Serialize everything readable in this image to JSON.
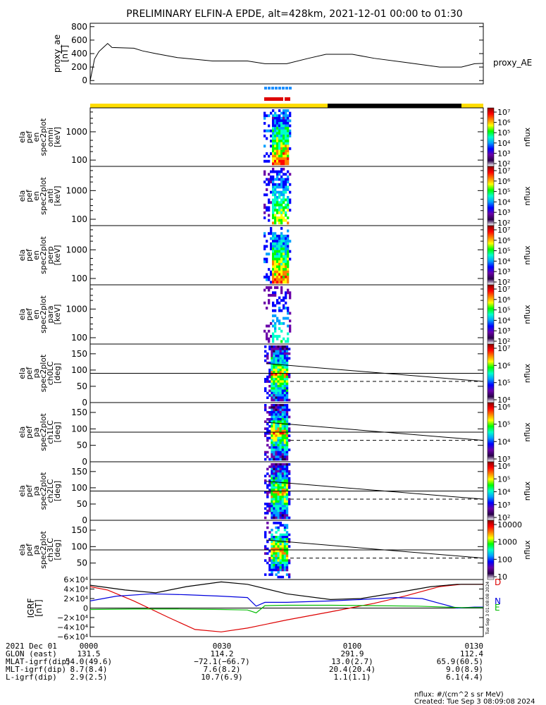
{
  "title": "PRELIMINARY ELFIN-A EPDE, alt=428km, 2021-12-01 00:00 to 01:30",
  "ae_panel": {
    "ylabel_lines": [
      "proxy_ae",
      "[nT]"
    ],
    "yticks": [
      "800",
      "600",
      "400",
      "200",
      "0"
    ],
    "series_label": "proxy_AE",
    "ylim": [
      -50,
      850
    ],
    "values": [
      [
        0,
        0
      ],
      [
        1,
        320
      ],
      [
        2,
        430
      ],
      [
        3,
        490
      ],
      [
        4,
        550
      ],
      [
        5,
        490
      ],
      [
        10,
        480
      ],
      [
        12,
        440
      ],
      [
        15,
        400
      ],
      [
        20,
        340
      ],
      [
        28,
        290
      ],
      [
        36,
        290
      ],
      [
        40,
        250
      ],
      [
        45,
        250
      ],
      [
        50,
        330
      ],
      [
        54,
        390
      ],
      [
        60,
        390
      ],
      [
        65,
        330
      ],
      [
        72,
        270
      ],
      [
        80,
        200
      ],
      [
        85,
        200
      ],
      [
        88,
        250
      ],
      [
        90,
        255
      ]
    ]
  },
  "energy_panels": [
    {
      "ylabel_lines": [
        "ela",
        "pef",
        "en",
        "spec2plot",
        "omni",
        "[keV]"
      ],
      "yticks": [
        "1000",
        "100"
      ]
    },
    {
      "ylabel_lines": [
        "ela",
        "pef",
        "en",
        "spec2plot",
        "anti",
        "[keV]"
      ],
      "yticks": [
        "1000",
        "100"
      ]
    },
    {
      "ylabel_lines": [
        "ela",
        "pef",
        "en",
        "spec2plot",
        "perp",
        "[keV]"
      ],
      "yticks": [
        "1000",
        "100"
      ]
    },
    {
      "ylabel_lines": [
        "ela",
        "pef",
        "en",
        "spec2plot",
        "para",
        "[keV]"
      ],
      "yticks": [
        "1000",
        "100"
      ]
    }
  ],
  "pa_panels": [
    {
      "ylabel_lines": [
        "ela",
        "pef",
        "pa",
        "spec2plot",
        "ch0LC",
        "[deg]"
      ],
      "yticks": [
        "150",
        "100",
        "50",
        "0"
      ]
    },
    {
      "ylabel_lines": [
        "ela",
        "pef",
        "pa",
        "spec2plot",
        "ch1LC",
        "[deg]"
      ],
      "yticks": [
        "150",
        "100",
        "50",
        "0"
      ]
    },
    {
      "ylabel_lines": [
        "ela",
        "pef",
        "pa",
        "spec2plot",
        "ch2LC",
        "[deg]"
      ],
      "yticks": [
        "150",
        "100",
        "50",
        "0"
      ]
    },
    {
      "ylabel_lines": [
        "ela",
        "pef",
        "pa",
        "spec2plot",
        "ch3LC",
        "[deg]"
      ],
      "yticks": [
        "150",
        "100",
        "50"
      ]
    }
  ],
  "colorbars": [
    {
      "title": "nflux",
      "labels": [
        "10⁷",
        "10⁶",
        "10⁵",
        "10⁴",
        "10³",
        "10²"
      ]
    },
    {
      "title": "nflux",
      "labels": [
        "10⁷",
        "10⁶",
        "10⁵",
        "10⁴",
        "10³",
        "10²"
      ]
    },
    {
      "title": "nflux",
      "labels": [
        "10⁷",
        "10⁶",
        "10⁵",
        "10⁴",
        "10³",
        "10²"
      ]
    },
    {
      "title": "nflux",
      "labels": [
        "10⁷",
        "10⁶",
        "10⁵",
        "10⁴",
        "10³",
        "10²"
      ]
    },
    {
      "title": "nflux",
      "labels": [
        "10⁷",
        "10⁶",
        "10⁵",
        "10⁴"
      ]
    },
    {
      "title": "nflux",
      "labels": [
        "10⁶",
        "10⁵",
        "10⁴",
        "10³"
      ]
    },
    {
      "title": "nflux",
      "labels": [
        "10⁶",
        "10⁵",
        "10⁴",
        "10³",
        "10²"
      ]
    },
    {
      "title": "nflux",
      "labels": [
        "10000",
        "1000",
        "100",
        "10"
      ]
    }
  ],
  "igrf_panel": {
    "ylabel_lines": [
      "IGRF",
      "[nT]"
    ],
    "yticks": [
      "6×10⁴",
      "4×10⁴",
      "2×10⁴",
      "0",
      "−2×10⁴",
      "−4×10⁴",
      "−6×10⁴"
    ],
    "ylim": [
      -60000,
      60000
    ],
    "legend": [
      {
        "label": "D",
        "color": "#dd0000"
      },
      {
        "label": "N",
        "color": "#0000dd"
      },
      {
        "label": "E",
        "color": "#00bb00"
      }
    ],
    "side_text": "Tue Sep  3 01:08:08 2024",
    "series": [
      {
        "name": "D",
        "color": "#dd0000",
        "values": [
          [
            0,
            45000
          ],
          [
            4,
            38000
          ],
          [
            10,
            15000
          ],
          [
            18,
            -20000
          ],
          [
            24,
            -45000
          ],
          [
            30,
            -50000
          ],
          [
            36,
            -42000
          ],
          [
            45,
            -25000
          ],
          [
            55,
            -8000
          ],
          [
            65,
            10000
          ],
          [
            72,
            25000
          ],
          [
            80,
            45000
          ],
          [
            85,
            50000
          ],
          [
            90,
            50000
          ]
        ]
      },
      {
        "name": "N",
        "color": "#0000dd",
        "values": [
          [
            0,
            15000
          ],
          [
            6,
            25000
          ],
          [
            14,
            30000
          ],
          [
            22,
            28000
          ],
          [
            30,
            25000
          ],
          [
            36,
            22000
          ],
          [
            38,
            4000
          ],
          [
            40,
            12000
          ],
          [
            45,
            12000
          ],
          [
            55,
            15000
          ],
          [
            62,
            18000
          ],
          [
            70,
            22000
          ],
          [
            76,
            20000
          ],
          [
            80,
            10000
          ],
          [
            84,
            0
          ],
          [
            88,
            2000
          ],
          [
            90,
            2000
          ]
        ]
      },
      {
        "name": "E",
        "color": "#00bb00",
        "values": [
          [
            0,
            -3000
          ],
          [
            10,
            -2000
          ],
          [
            20,
            -2000
          ],
          [
            30,
            -3000
          ],
          [
            36,
            -4000
          ],
          [
            38,
            -10000
          ],
          [
            40,
            5000
          ],
          [
            45,
            6000
          ],
          [
            55,
            6000
          ],
          [
            65,
            5000
          ],
          [
            75,
            4000
          ],
          [
            85,
            1000
          ],
          [
            90,
            1000
          ]
        ]
      },
      {
        "name": "total",
        "color": "#000000",
        "values": [
          [
            0,
            48000
          ],
          [
            8,
            38000
          ],
          [
            15,
            32000
          ],
          [
            22,
            45000
          ],
          [
            30,
            55000
          ],
          [
            36,
            50000
          ],
          [
            45,
            30000
          ],
          [
            55,
            18000
          ],
          [
            62,
            20000
          ],
          [
            70,
            32000
          ],
          [
            78,
            45000
          ],
          [
            84,
            50000
          ],
          [
            90,
            50000
          ]
        ]
      }
    ]
  },
  "ephemeris": {
    "rows": [
      {
        "label": "2021 Dec 01",
        "values": [
          "0000",
          "0030",
          "0100",
          "0130"
        ]
      },
      {
        "label": "GLON (east)",
        "values": [
          "131.5",
          "114.2",
          "291.9",
          "112.4"
        ]
      },
      {
        "label": "MLAT-igrf(dip)",
        "values": [
          "54.0(49.6)",
          "−72.1(−66.7)",
          "13.0(2.7)",
          "65.9(60.5)"
        ]
      },
      {
        "label": "MLT-igrf(dip)",
        "values": [
          "8.7(8.4)",
          "7.6(8.2)",
          "20.4(20.4)",
          "9.0(8.9)"
        ]
      },
      {
        "label": "L-igrf(dip)",
        "values": [
          "2.9(2.5)",
          "10.7(6.9)",
          "1.1(1.1)",
          "6.1(4.4)"
        ]
      }
    ]
  },
  "footer": {
    "units": "nflux: #/(cm^2 s sr MeV)",
    "created": "Created: Tue Sep  3 08:09:08 2024"
  },
  "colors": {
    "day_bar": "#ffdd00",
    "night_bar": "#000000",
    "blue_marker": "#1e90ff",
    "red_marker": "#dd0000"
  },
  "chart_data": [
    {
      "type": "line",
      "title": "PRELIMINARY ELFIN-A EPDE, alt=428km, 2021-12-01 00:00 to 01:30",
      "ylabel": "proxy_ae [nT]",
      "series": [
        {
          "name": "proxy_AE"
        }
      ],
      "ylim": [
        0,
        800
      ],
      "xlim_minutes": [
        0,
        90
      ]
    },
    {
      "type": "heatmap",
      "panels": [
        "omni",
        "anti",
        "perp",
        "para"
      ],
      "ylabel": "[keV]",
      "yscale": "log",
      "ylim": [
        60,
        7000
      ],
      "active_interval_minutes": [
        38.8,
        44.5
      ],
      "colorbar": {
        "title": "nflux",
        "range": [
          "10²",
          "10⁷"
        ],
        "scale": "log"
      }
    },
    {
      "type": "heatmap",
      "panels": [
        "ch0LC",
        "ch1LC",
        "ch2LC",
        "ch3LC"
      ],
      "ylabel": "[deg]",
      "ylim": [
        0,
        180
      ],
      "reference_line": 90,
      "active_interval_minutes": [
        38.8,
        44.5
      ],
      "loss_cone_solid_deg": [
        [
          39,
          120
        ],
        [
          90,
          65
        ]
      ],
      "loss_cone_dashed_deg": [
        [
          39,
          65
        ],
        [
          90,
          65
        ]
      ]
    },
    {
      "type": "line",
      "ylabel": "IGRF [nT]",
      "series": [
        {
          "name": "D"
        },
        {
          "name": "N"
        },
        {
          "name": "E"
        }
      ],
      "ylim": [
        -60000,
        60000
      ],
      "xlim_minutes": [
        0,
        90
      ]
    }
  ]
}
